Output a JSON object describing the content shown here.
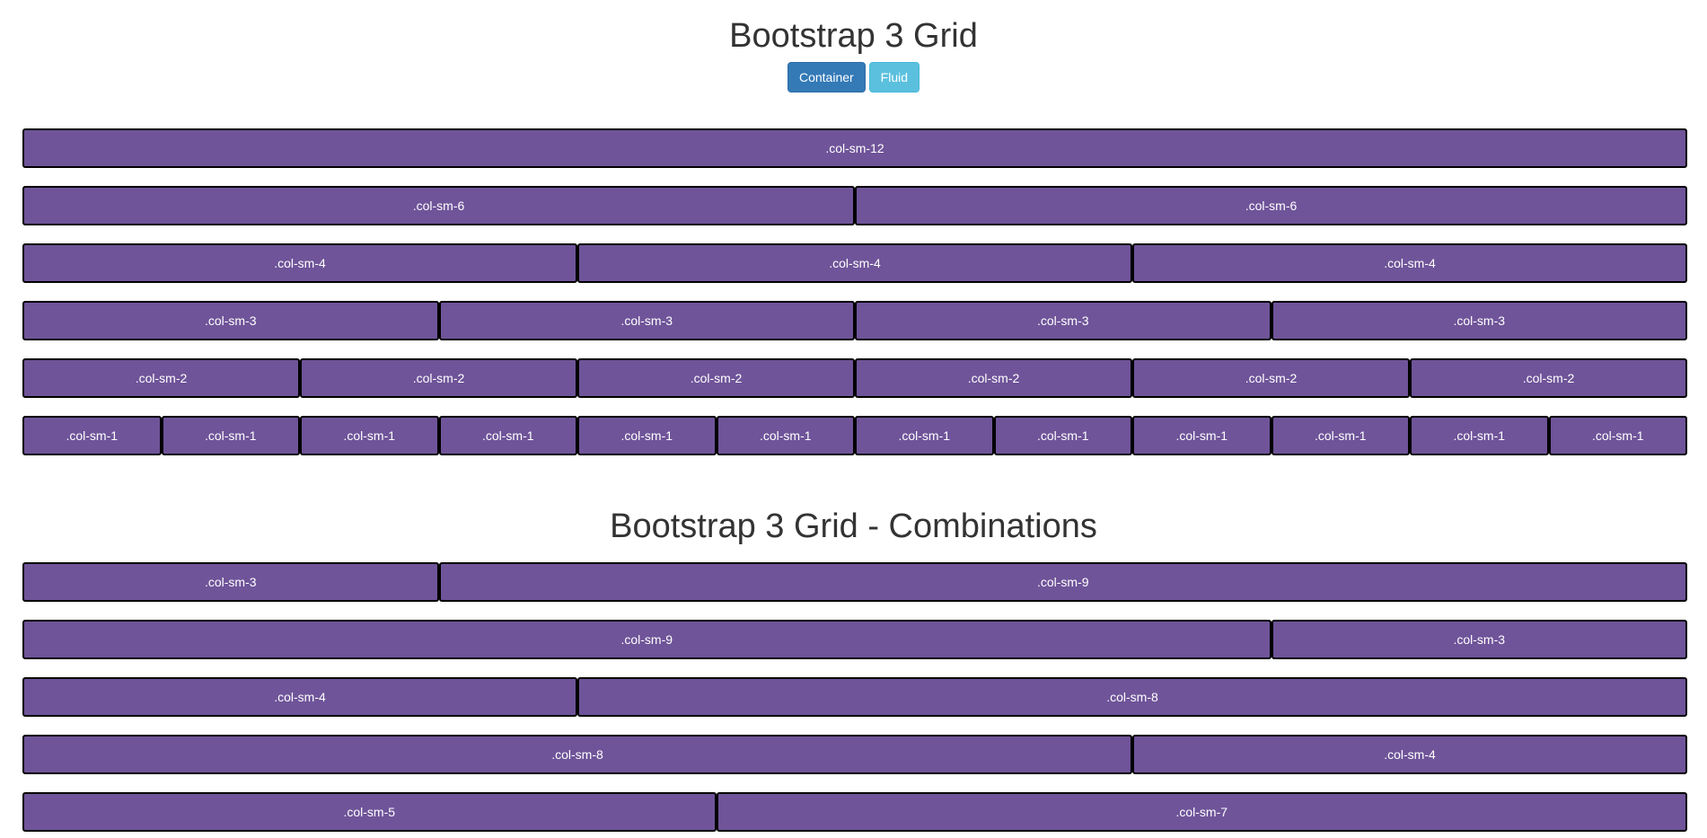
{
  "colors": {
    "column_bg": "#6f5499",
    "column_border": "#000000",
    "primary_button": "#337ab7",
    "info_button": "#5bc0de"
  },
  "header": {
    "title": "Bootstrap 3 Grid",
    "buttons": {
      "container_label": "Container",
      "fluid_label": "Fluid"
    }
  },
  "grid": [
    [
      {
        "span": 12,
        "label": ".col-sm-12"
      }
    ],
    [
      {
        "span": 6,
        "label": ".col-sm-6"
      },
      {
        "span": 6,
        "label": ".col-sm-6"
      }
    ],
    [
      {
        "span": 4,
        "label": ".col-sm-4"
      },
      {
        "span": 4,
        "label": ".col-sm-4"
      },
      {
        "span": 4,
        "label": ".col-sm-4"
      }
    ],
    [
      {
        "span": 3,
        "label": ".col-sm-3"
      },
      {
        "span": 3,
        "label": ".col-sm-3"
      },
      {
        "span": 3,
        "label": ".col-sm-3"
      },
      {
        "span": 3,
        "label": ".col-sm-3"
      }
    ],
    [
      {
        "span": 2,
        "label": ".col-sm-2"
      },
      {
        "span": 2,
        "label": ".col-sm-2"
      },
      {
        "span": 2,
        "label": ".col-sm-2"
      },
      {
        "span": 2,
        "label": ".col-sm-2"
      },
      {
        "span": 2,
        "label": ".col-sm-2"
      },
      {
        "span": 2,
        "label": ".col-sm-2"
      }
    ],
    [
      {
        "span": 1,
        "label": ".col-sm-1"
      },
      {
        "span": 1,
        "label": ".col-sm-1"
      },
      {
        "span": 1,
        "label": ".col-sm-1"
      },
      {
        "span": 1,
        "label": ".col-sm-1"
      },
      {
        "span": 1,
        "label": ".col-sm-1"
      },
      {
        "span": 1,
        "label": ".col-sm-1"
      },
      {
        "span": 1,
        "label": ".col-sm-1"
      },
      {
        "span": 1,
        "label": ".col-sm-1"
      },
      {
        "span": 1,
        "label": ".col-sm-1"
      },
      {
        "span": 1,
        "label": ".col-sm-1"
      },
      {
        "span": 1,
        "label": ".col-sm-1"
      },
      {
        "span": 1,
        "label": ".col-sm-1"
      }
    ]
  ],
  "combinations": {
    "title": "Bootstrap 3 Grid - Combinations",
    "rows": [
      [
        {
          "span": 3,
          "label": ".col-sm-3"
        },
        {
          "span": 9,
          "label": ".col-sm-9"
        }
      ],
      [
        {
          "span": 9,
          "label": ".col-sm-9"
        },
        {
          "span": 3,
          "label": ".col-sm-3"
        }
      ],
      [
        {
          "span": 4,
          "label": ".col-sm-4"
        },
        {
          "span": 8,
          "label": ".col-sm-8"
        }
      ],
      [
        {
          "span": 8,
          "label": ".col-sm-8"
        },
        {
          "span": 4,
          "label": ".col-sm-4"
        }
      ],
      [
        {
          "span": 5,
          "label": ".col-sm-5"
        },
        {
          "span": 7,
          "label": ".col-sm-7"
        }
      ]
    ]
  }
}
